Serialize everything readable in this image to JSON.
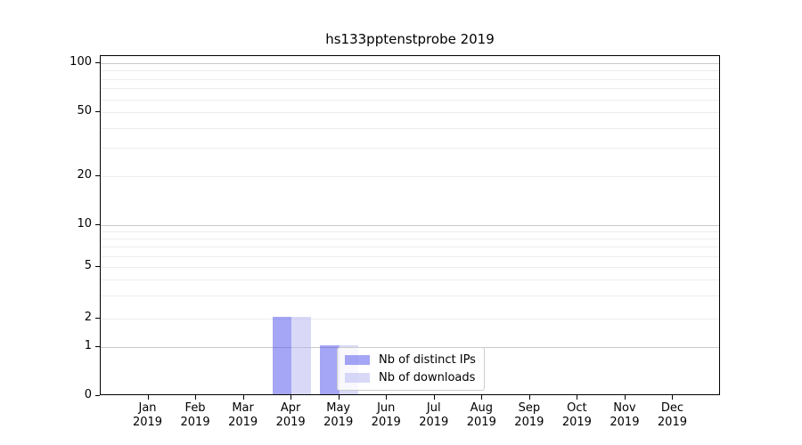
{
  "title": "hs133pptenstprobe 2019",
  "chart_data": {
    "type": "bar",
    "title": "hs133pptenstprobe 2019",
    "categories": [
      "Jan",
      "Feb",
      "Mar",
      "Apr",
      "May",
      "Jun",
      "Jul",
      "Aug",
      "Sep",
      "Oct",
      "Nov",
      "Dec"
    ],
    "category_year": "2019",
    "series": [
      {
        "name": "Nb of distinct IPs",
        "color": "rgba(77,77,237,0.5)",
        "values": [
          0,
          0,
          0,
          2,
          1,
          0,
          0,
          0,
          0,
          0,
          0,
          0
        ]
      },
      {
        "name": "Nb of downloads",
        "color": "rgba(179,179,239,0.5)",
        "values": [
          0,
          0,
          0,
          2,
          1,
          0,
          0,
          0,
          0,
          0,
          0,
          0
        ]
      }
    ],
    "xlabel": "",
    "ylabel": "",
    "y_axis": {
      "scale": "symlog-like",
      "ticks": [
        0,
        1,
        2,
        5,
        10,
        20,
        50,
        100
      ],
      "tick_labels": [
        "0",
        "1",
        "2",
        "5",
        "10",
        "20",
        "50",
        "100"
      ],
      "range": [
        0,
        110
      ]
    },
    "grid": {
      "orientation": "horizontal",
      "major_values": [
        1,
        10,
        100
      ],
      "minor_values": [
        2,
        3,
        4,
        5,
        6,
        7,
        8,
        9,
        20,
        30,
        40,
        50,
        60,
        70,
        80,
        90
      ]
    },
    "legend": {
      "position": "lower-center-inside",
      "entries": [
        "Nb of distinct IPs",
        "Nb of downloads"
      ]
    }
  },
  "colors": {
    "bar_distinct_ips": "rgba(77,77,237,0.5)",
    "bar_downloads": "rgba(179,179,239,0.5)",
    "grid_major": "#c9c9c9",
    "grid_minor": "#ededed",
    "axis": "#000000",
    "legend_border": "#cccccc",
    "background": "#ffffff"
  }
}
